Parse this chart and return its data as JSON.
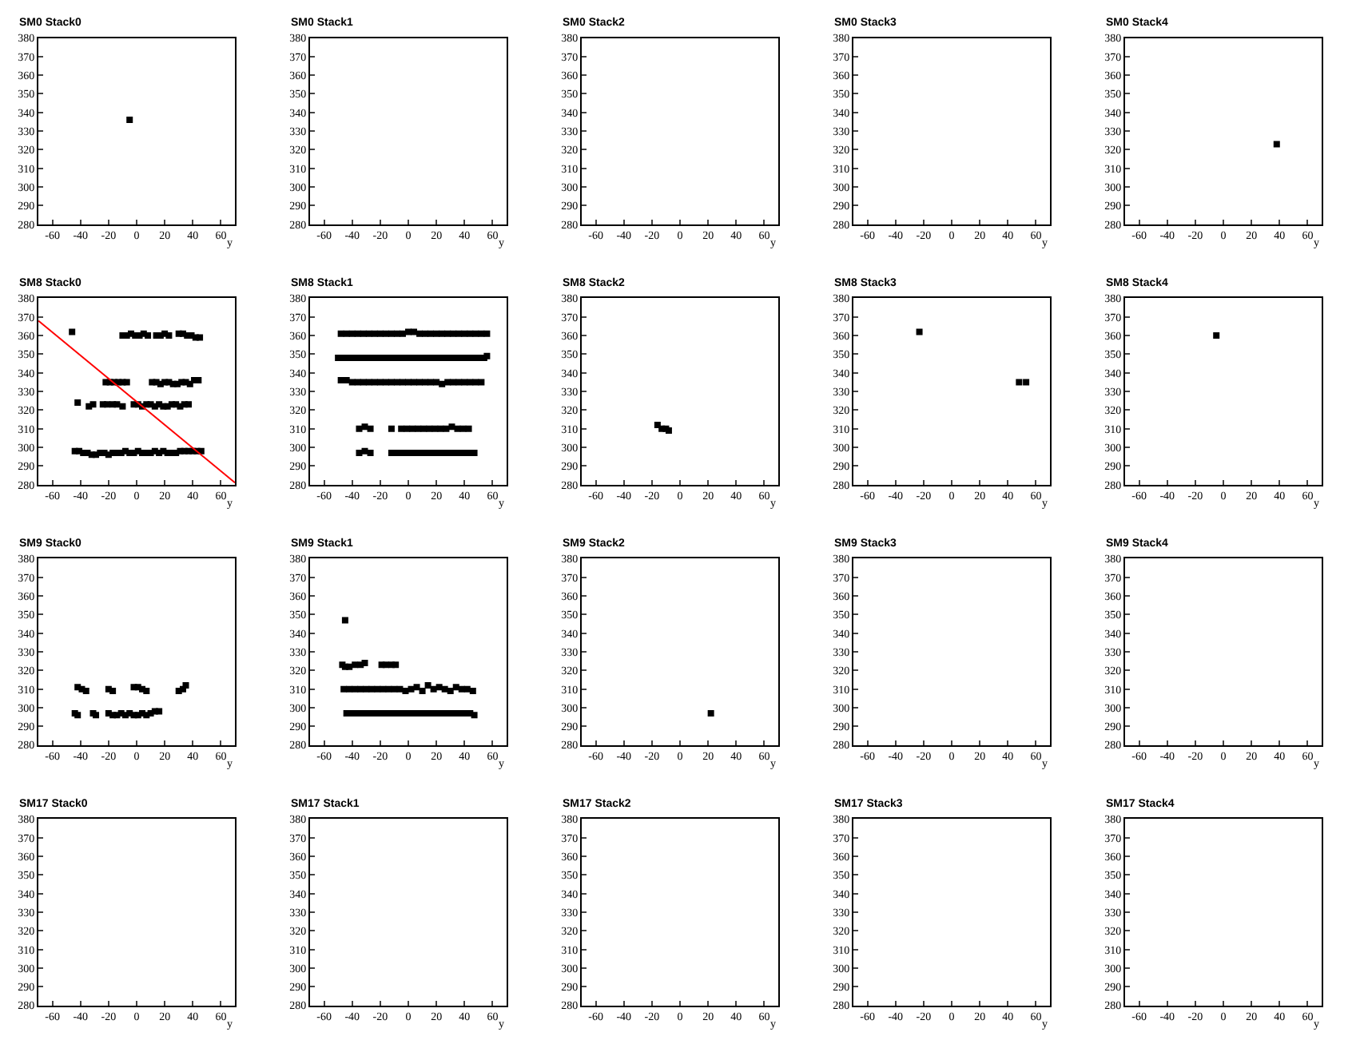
{
  "chart_data": [
    {
      "type": "scatter",
      "title": "SM0 Stack0",
      "xlabel": "y",
      "xlim": [
        -70,
        70
      ],
      "ylim": [
        280,
        380
      ],
      "xticks": [
        -60,
        -40,
        -20,
        0,
        20,
        40,
        60
      ],
      "yticks": [
        280,
        290,
        300,
        310,
        320,
        330,
        340,
        350,
        360,
        370,
        380
      ],
      "marker": "square",
      "series": [
        {
          "color": "#000000",
          "x": [
            -5
          ],
          "values": [
            336
          ]
        }
      ]
    },
    {
      "type": "scatter",
      "title": "SM0 Stack1",
      "xlabel": "y",
      "xlim": [
        -70,
        70
      ],
      "ylim": [
        280,
        380
      ],
      "xticks": [
        -60,
        -40,
        -20,
        0,
        20,
        40,
        60
      ],
      "yticks": [
        280,
        290,
        300,
        310,
        320,
        330,
        340,
        350,
        360,
        370,
        380
      ]
    },
    {
      "type": "scatter",
      "title": "SM0 Stack2",
      "xlabel": "y",
      "xlim": [
        -70,
        70
      ],
      "ylim": [
        280,
        380
      ],
      "xticks": [
        -60,
        -40,
        -20,
        0,
        20,
        40,
        60
      ],
      "yticks": [
        280,
        290,
        300,
        310,
        320,
        330,
        340,
        350,
        360,
        370,
        380
      ]
    },
    {
      "type": "scatter",
      "title": "SM0 Stack3",
      "xlabel": "y",
      "xlim": [
        -70,
        70
      ],
      "ylim": [
        280,
        380
      ],
      "xticks": [
        -60,
        -40,
        -20,
        0,
        20,
        40,
        60
      ],
      "yticks": [
        280,
        290,
        300,
        310,
        320,
        330,
        340,
        350,
        360,
        370,
        380
      ]
    },
    {
      "type": "scatter",
      "title": "SM0 Stack4",
      "xlabel": "y",
      "xlim": [
        -70,
        70
      ],
      "ylim": [
        280,
        380
      ],
      "xticks": [
        -60,
        -40,
        -20,
        0,
        20,
        40,
        60
      ],
      "yticks": [
        280,
        290,
        300,
        310,
        320,
        330,
        340,
        350,
        360,
        370,
        380
      ],
      "marker": "square",
      "series": [
        {
          "color": "#000000",
          "x": [
            38
          ],
          "values": [
            323
          ]
        }
      ]
    },
    {
      "type": "scatter",
      "title": "SM8 Stack0",
      "xlabel": "y",
      "xlim": [
        -70,
        70
      ],
      "ylim": [
        280,
        380
      ],
      "xticks": [
        -60,
        -40,
        -20,
        0,
        20,
        40,
        60
      ],
      "yticks": [
        280,
        290,
        300,
        310,
        320,
        330,
        340,
        350,
        360,
        370,
        380
      ],
      "marker": "square",
      "series": [
        {
          "color": "#000000",
          "x": [
            -46,
            -10,
            -7,
            -4,
            -1,
            2,
            5,
            8,
            14,
            17,
            20,
            23,
            30,
            33,
            36,
            39,
            42,
            45,
            -22,
            -19,
            -16,
            -13,
            -10,
            -7,
            11,
            14,
            17,
            20,
            23,
            26,
            29,
            32,
            35,
            38,
            41,
            44,
            -42,
            -34,
            -31,
            -24,
            -21,
            -17,
            -14,
            -10,
            -2,
            1,
            4,
            7,
            10,
            13,
            16,
            19,
            22,
            25,
            28,
            31,
            34,
            37,
            -44,
            -41,
            -38,
            -35,
            -32,
            -29,
            -26,
            -23,
            -20,
            -17,
            -14,
            -11,
            -8,
            -5,
            -2,
            1,
            4,
            7,
            10,
            13,
            16,
            19,
            22,
            25,
            28,
            31,
            34,
            37,
            40,
            43,
            46
          ],
          "values": [
            362,
            360,
            360,
            361,
            360,
            360,
            361,
            360,
            360,
            360,
            361,
            360,
            361,
            361,
            360,
            360,
            359,
            359,
            335,
            335,
            335,
            335,
            335,
            335,
            335,
            335,
            334,
            335,
            335,
            334,
            334,
            335,
            335,
            334,
            336,
            336,
            324,
            322,
            323,
            323,
            323,
            323,
            323,
            322,
            323,
            323,
            322,
            323,
            323,
            322,
            323,
            322,
            322,
            323,
            323,
            322,
            323,
            323,
            298,
            298,
            297,
            297,
            296,
            296,
            297,
            297,
            296,
            297,
            297,
            297,
            298,
            297,
            297,
            298,
            297,
            297,
            297,
            298,
            297,
            298,
            297,
            297,
            297,
            298,
            298,
            298,
            298,
            298,
            298
          ]
        },
        {
          "type": "line",
          "marker": "none",
          "color": "#ff0000",
          "x": [
            -70,
            70
          ],
          "values": [
            368,
            281
          ]
        }
      ]
    },
    {
      "type": "scatter",
      "title": "SM8 Stack1",
      "xlabel": "y",
      "xlim": [
        -70,
        70
      ],
      "ylim": [
        280,
        380
      ],
      "xticks": [
        -60,
        -40,
        -20,
        0,
        20,
        40,
        60
      ],
      "yticks": [
        280,
        290,
        300,
        310,
        320,
        330,
        340,
        350,
        360,
        370,
        380
      ],
      "marker": "square",
      "series": [
        {
          "color": "#000000",
          "x": [
            -48,
            -44,
            -40,
            -36,
            -32,
            -28,
            -24,
            -20,
            -16,
            -12,
            -8,
            -4,
            0,
            4,
            8,
            12,
            16,
            20,
            24,
            28,
            32,
            36,
            40,
            44,
            48,
            52,
            56,
            -50,
            -46,
            -42,
            -38,
            -34,
            -30,
            -26,
            -22,
            -18,
            -14,
            -10,
            -6,
            -2,
            2,
            6,
            10,
            14,
            18,
            22,
            26,
            30,
            34,
            38,
            42,
            46,
            50,
            54,
            56,
            -48,
            -44,
            -40,
            -36,
            -32,
            -28,
            -24,
            -20,
            -16,
            -12,
            -8,
            -4,
            0,
            4,
            8,
            12,
            16,
            20,
            24,
            28,
            32,
            36,
            40,
            44,
            48,
            52,
            -35,
            -31,
            -27,
            -12,
            -5,
            -1,
            3,
            7,
            11,
            15,
            19,
            23,
            27,
            31,
            35,
            39,
            43,
            -35,
            -31,
            -27,
            -12,
            -8,
            -4,
            0,
            4,
            8,
            12,
            16,
            20,
            24,
            28,
            32,
            36,
            40,
            44,
            47
          ],
          "values": [
            361,
            361,
            361,
            361,
            361,
            361,
            361,
            361,
            361,
            361,
            361,
            361,
            362,
            362,
            361,
            361,
            361,
            361,
            361,
            361,
            361,
            361,
            361,
            361,
            361,
            361,
            361,
            348,
            348,
            348,
            348,
            348,
            348,
            348,
            348,
            348,
            348,
            348,
            348,
            348,
            348,
            348,
            348,
            348,
            348,
            348,
            348,
            348,
            348,
            348,
            348,
            348,
            348,
            348,
            349,
            336,
            336,
            335,
            335,
            335,
            335,
            335,
            335,
            335,
            335,
            335,
            335,
            335,
            335,
            335,
            335,
            335,
            335,
            334,
            335,
            335,
            335,
            335,
            335,
            335,
            335,
            310,
            311,
            310,
            310,
            310,
            310,
            310,
            310,
            310,
            310,
            310,
            310,
            310,
            311,
            310,
            310,
            310,
            297,
            298,
            297,
            297,
            297,
            297,
            297,
            297,
            297,
            297,
            297,
            297,
            297,
            297,
            297,
            297,
            297,
            297,
            297
          ]
        }
      ]
    },
    {
      "type": "scatter",
      "title": "SM8 Stack2",
      "xlabel": "y",
      "xlim": [
        -70,
        70
      ],
      "ylim": [
        280,
        380
      ],
      "xticks": [
        -60,
        -40,
        -20,
        0,
        20,
        40,
        60
      ],
      "yticks": [
        280,
        290,
        300,
        310,
        320,
        330,
        340,
        350,
        360,
        370,
        380
      ],
      "marker": "square",
      "series": [
        {
          "color": "#000000",
          "x": [
            -16,
            -13,
            -10,
            -8
          ],
          "values": [
            312,
            310,
            310,
            309
          ]
        }
      ]
    },
    {
      "type": "scatter",
      "title": "SM8 Stack3",
      "xlabel": "y",
      "xlim": [
        -70,
        70
      ],
      "ylim": [
        280,
        380
      ],
      "xticks": [
        -60,
        -40,
        -20,
        0,
        20,
        40,
        60
      ],
      "yticks": [
        280,
        290,
        300,
        310,
        320,
        330,
        340,
        350,
        360,
        370,
        380
      ],
      "marker": "square",
      "series": [
        {
          "color": "#000000",
          "x": [
            -23,
            48,
            53
          ],
          "values": [
            362,
            335,
            335
          ]
        }
      ]
    },
    {
      "type": "scatter",
      "title": "SM8 Stack4",
      "xlabel": "y",
      "xlim": [
        -70,
        70
      ],
      "ylim": [
        280,
        380
      ],
      "xticks": [
        -60,
        -40,
        -20,
        0,
        20,
        40,
        60
      ],
      "yticks": [
        280,
        290,
        300,
        310,
        320,
        330,
        340,
        350,
        360,
        370,
        380
      ],
      "marker": "square",
      "series": [
        {
          "color": "#000000",
          "x": [
            -5
          ],
          "values": [
            360
          ]
        }
      ]
    },
    {
      "type": "scatter",
      "title": "SM9 Stack0",
      "xlabel": "y",
      "xlim": [
        -70,
        70
      ],
      "ylim": [
        280,
        380
      ],
      "xticks": [
        -60,
        -40,
        -20,
        0,
        20,
        40,
        60
      ],
      "yticks": [
        280,
        290,
        300,
        310,
        320,
        330,
        340,
        350,
        360,
        370,
        380
      ],
      "marker": "square",
      "series": [
        {
          "color": "#000000",
          "x": [
            -42,
            -39,
            -36,
            -20,
            -17,
            -2,
            1,
            4,
            7,
            30,
            33,
            35,
            -44,
            -42,
            -31,
            -29,
            -20,
            -17,
            -14,
            -11,
            -8,
            -5,
            -2,
            1,
            4,
            7,
            10,
            13,
            16
          ],
          "values": [
            311,
            310,
            309,
            310,
            309,
            311,
            311,
            310,
            309,
            309,
            310,
            312,
            297,
            296,
            297,
            296,
            297,
            296,
            296,
            297,
            296,
            297,
            296,
            296,
            297,
            296,
            297,
            298,
            298
          ]
        }
      ]
    },
    {
      "type": "scatter",
      "title": "SM9 Stack1",
      "xlabel": "y",
      "xlim": [
        -70,
        70
      ],
      "ylim": [
        280,
        380
      ],
      "xticks": [
        -60,
        -40,
        -20,
        0,
        20,
        40,
        60
      ],
      "yticks": [
        280,
        290,
        300,
        310,
        320,
        330,
        340,
        350,
        360,
        370,
        380
      ],
      "marker": "square",
      "series": [
        {
          "color": "#000000",
          "x": [
            -45,
            -47,
            -45,
            -42,
            -38,
            -34,
            -31,
            -19,
            -16,
            -12,
            -9,
            -46,
            -42,
            -38,
            -34,
            -30,
            -26,
            -22,
            -18,
            -14,
            -10,
            -6,
            -2,
            2,
            6,
            10,
            14,
            18,
            22,
            26,
            30,
            34,
            38,
            42,
            46,
            -44,
            -40,
            -36,
            -32,
            -28,
            -24,
            -20,
            -16,
            -12,
            -8,
            -4,
            0,
            4,
            8,
            12,
            16,
            20,
            24,
            28,
            32,
            36,
            40,
            44,
            47
          ],
          "values": [
            347,
            323,
            322,
            322,
            323,
            323,
            324,
            323,
            323,
            323,
            323,
            310,
            310,
            310,
            310,
            310,
            310,
            310,
            310,
            310,
            310,
            310,
            309,
            310,
            311,
            309,
            312,
            310,
            311,
            310,
            309,
            311,
            310,
            310,
            309,
            297,
            297,
            297,
            297,
            297,
            297,
            297,
            297,
            297,
            297,
            297,
            297,
            297,
            297,
            297,
            297,
            297,
            297,
            297,
            297,
            297,
            297,
            297,
            296
          ]
        }
      ]
    },
    {
      "type": "scatter",
      "title": "SM9 Stack2",
      "xlabel": "y",
      "xlim": [
        -70,
        70
      ],
      "ylim": [
        280,
        380
      ],
      "xticks": [
        -60,
        -40,
        -20,
        0,
        20,
        40,
        60
      ],
      "yticks": [
        280,
        290,
        300,
        310,
        320,
        330,
        340,
        350,
        360,
        370,
        380
      ],
      "marker": "square",
      "series": [
        {
          "color": "#000000",
          "x": [
            22
          ],
          "values": [
            297
          ]
        }
      ]
    },
    {
      "type": "scatter",
      "title": "SM9 Stack3",
      "xlabel": "y",
      "xlim": [
        -70,
        70
      ],
      "ylim": [
        280,
        380
      ],
      "xticks": [
        -60,
        -40,
        -20,
        0,
        20,
        40,
        60
      ],
      "yticks": [
        280,
        290,
        300,
        310,
        320,
        330,
        340,
        350,
        360,
        370,
        380
      ]
    },
    {
      "type": "scatter",
      "title": "SM9 Stack4",
      "xlabel": "y",
      "xlim": [
        -70,
        70
      ],
      "ylim": [
        280,
        380
      ],
      "xticks": [
        -60,
        -40,
        -20,
        0,
        20,
        40,
        60
      ],
      "yticks": [
        280,
        290,
        300,
        310,
        320,
        330,
        340,
        350,
        360,
        370,
        380
      ]
    },
    {
      "type": "scatter",
      "title": "SM17 Stack0",
      "xlabel": "y",
      "xlim": [
        -70,
        70
      ],
      "ylim": [
        280,
        380
      ],
      "xticks": [
        -60,
        -40,
        -20,
        0,
        20,
        40,
        60
      ],
      "yticks": [
        280,
        290,
        300,
        310,
        320,
        330,
        340,
        350,
        360,
        370,
        380
      ]
    },
    {
      "type": "scatter",
      "title": "SM17 Stack1",
      "xlabel": "y",
      "xlim": [
        -70,
        70
      ],
      "ylim": [
        280,
        380
      ],
      "xticks": [
        -60,
        -40,
        -20,
        0,
        20,
        40,
        60
      ],
      "yticks": [
        280,
        290,
        300,
        310,
        320,
        330,
        340,
        350,
        360,
        370,
        380
      ]
    },
    {
      "type": "scatter",
      "title": "SM17 Stack2",
      "xlabel": "y",
      "xlim": [
        -70,
        70
      ],
      "ylim": [
        280,
        380
      ],
      "xticks": [
        -60,
        -40,
        -20,
        0,
        20,
        40,
        60
      ],
      "yticks": [
        280,
        290,
        300,
        310,
        320,
        330,
        340,
        350,
        360,
        370,
        380
      ]
    },
    {
      "type": "scatter",
      "title": "SM17 Stack3",
      "xlabel": "y",
      "xlim": [
        -70,
        70
      ],
      "ylim": [
        280,
        380
      ],
      "xticks": [
        -60,
        -40,
        -20,
        0,
        20,
        40,
        60
      ],
      "yticks": [
        280,
        290,
        300,
        310,
        320,
        330,
        340,
        350,
        360,
        370,
        380
      ]
    },
    {
      "type": "scatter",
      "title": "SM17 Stack4",
      "xlabel": "y",
      "xlim": [
        -70,
        70
      ],
      "ylim": [
        280,
        380
      ],
      "xticks": [
        -60,
        -40,
        -20,
        0,
        20,
        40,
        60
      ],
      "yticks": [
        280,
        290,
        300,
        310,
        320,
        330,
        340,
        350,
        360,
        370,
        380
      ]
    }
  ]
}
